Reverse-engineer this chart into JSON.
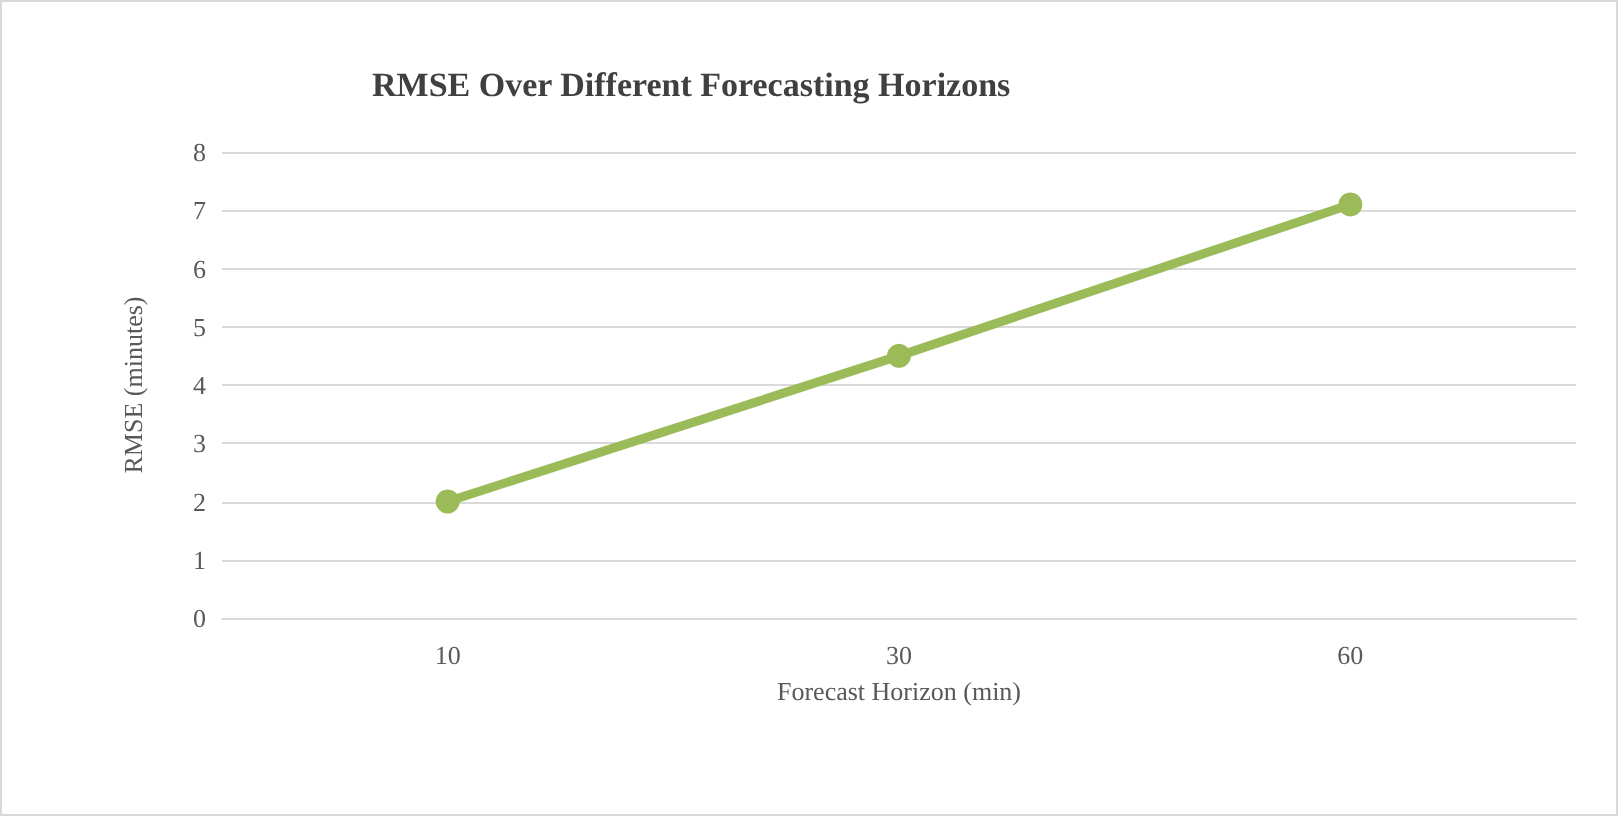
{
  "chart_data": {
    "type": "line",
    "title": "RMSE Over Different Forecasting Horizons",
    "xlabel": "Forecast Horizon (min)",
    "ylabel": "RMSE (minutes)",
    "categories": [
      "10",
      "30",
      "60"
    ],
    "series": [
      {
        "color": "#9bbb59",
        "values": [
          2,
          4.5,
          7.1
        ]
      }
    ],
    "ylim": [
      0,
      8
    ],
    "yticks": [
      0,
      1,
      2,
      3,
      4,
      5,
      6,
      7,
      8
    ],
    "grid": "y",
    "marker": "circle",
    "line_style": "solid"
  }
}
